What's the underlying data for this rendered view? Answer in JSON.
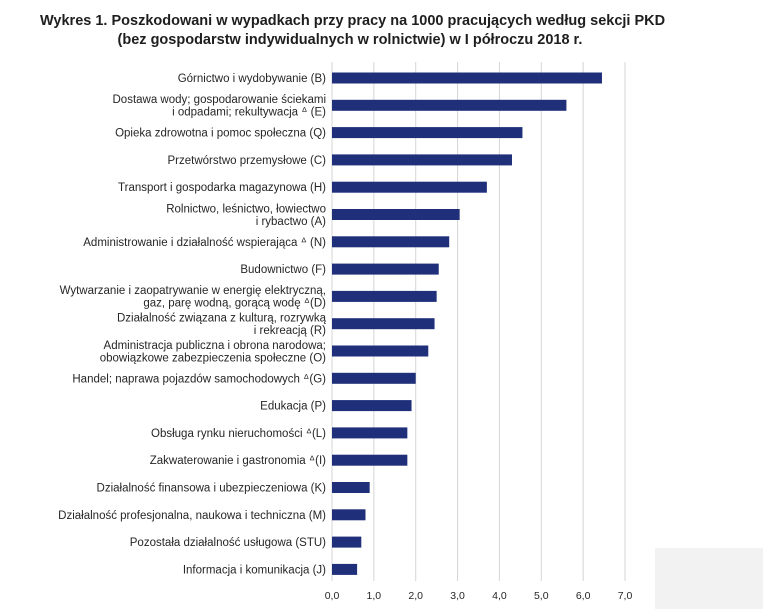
{
  "chart_data": {
    "type": "bar",
    "orientation": "horizontal",
    "title": [
      "Wykres 1. Poszkodowani w wypadkach przy pracy na 1000 pracujących według sekcji PKD",
      "(bez gospodarstw indywidualnych w rolnictwie) w I półroczu 2018 r."
    ],
    "categories": [
      [
        "Górnictwo i wydobywanie (B)"
      ],
      [
        "Dostawa wody; gospodarowanie ściekami",
        "i odpadami; rekultywacja ᐞ (E)"
      ],
      [
        "Opieka zdrowotna i pomoc społeczna (Q)"
      ],
      [
        "Przetwórstwo przemysłowe (C)"
      ],
      [
        "Transport i gospodarka magazynowa (H)"
      ],
      [
        "Rolnictwo, leśnictwo, łowiectwo",
        "i rybactwo (A)"
      ],
      [
        "Administrowanie i działalność wspierająca ᐞ (N)"
      ],
      [
        "Budownictwo (F)"
      ],
      [
        "Wytwarzanie i zaopatrywanie w energię elektryczną,",
        "gaz, parę wodną, gorącą wodę ᐞ(D)"
      ],
      [
        "Działalność związana z kulturą, rozrywką",
        "i rekreacją (R)"
      ],
      [
        "Administracja publiczna i obrona narodowa;",
        "obowiązkowe zabezpieczenia społeczne (O)"
      ],
      [
        "Handel; naprawa pojazdów samochodowych ᐞ(G)"
      ],
      [
        "Edukacja (P)"
      ],
      [
        "Obsługa rynku nieruchomości ᐞ(L)"
      ],
      [
        "Zakwaterowanie i gastronomia ᐞ(I)"
      ],
      [
        "Działalność finansowa i ubezpieczeniowa (K)"
      ],
      [
        "Działalność profesjonalna, naukowa i techniczna (M)"
      ],
      [
        "Pozostała działalność usługowa (STU)"
      ],
      [
        "Informacja i komunikacja (J)"
      ]
    ],
    "values": [
      6.45,
      5.6,
      4.55,
      4.3,
      3.7,
      3.05,
      2.8,
      2.55,
      2.5,
      2.45,
      2.3,
      2.0,
      1.9,
      1.8,
      1.8,
      0.9,
      0.8,
      0.7,
      0.6
    ],
    "xlim": [
      0,
      7
    ],
    "xticks": [
      "0,0",
      "1,0",
      "2,0",
      "3,0",
      "4,0",
      "5,0",
      "6,0",
      "7,0"
    ],
    "grid": "vertical",
    "bar_color": "#1f2f7a"
  }
}
